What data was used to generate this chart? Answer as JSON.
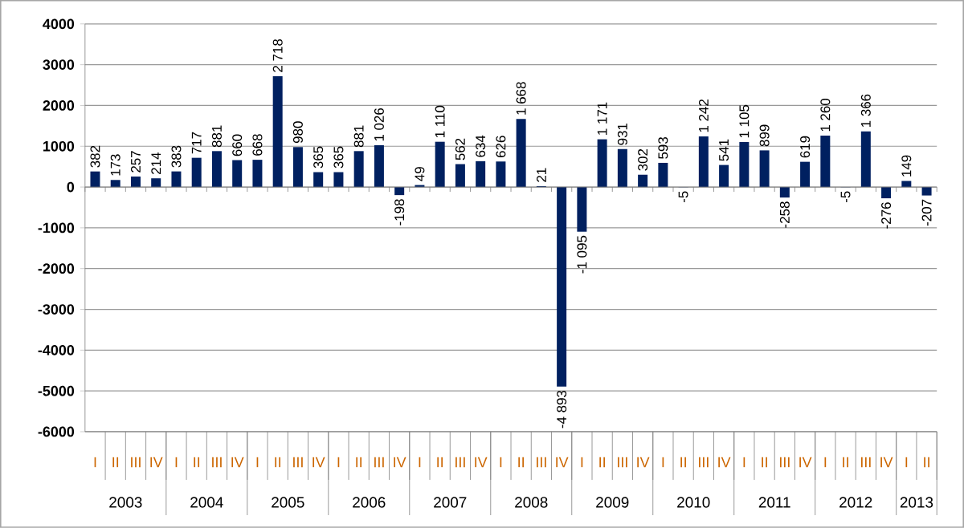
{
  "chart_data": {
    "type": "bar",
    "categories": [
      "I",
      "II",
      "III",
      "IV",
      "I",
      "II",
      "III",
      "IV",
      "I",
      "II",
      "III",
      "IV",
      "I",
      "II",
      "III",
      "IV",
      "I",
      "II",
      "III",
      "IV",
      "I",
      "II",
      "III",
      "IV",
      "I",
      "II",
      "III",
      "IV",
      "I",
      "II",
      "III",
      "IV",
      "I",
      "II",
      "III",
      "IV",
      "I",
      "II",
      "III",
      "IV",
      "I",
      "II"
    ],
    "values": [
      382,
      173,
      257,
      214,
      383,
      717,
      881,
      660,
      668,
      2718,
      980,
      365,
      365,
      881,
      1026,
      -198,
      49,
      1110,
      562,
      634,
      626,
      1668,
      21,
      -4893,
      -1095,
      1171,
      931,
      302,
      593,
      -5,
      1242,
      541,
      1105,
      899,
      -258,
      619,
      1260,
      -5,
      1366,
      -276,
      149,
      -207
    ],
    "value_labels": [
      "382",
      "173",
      "257",
      "214",
      "383",
      "717",
      "881",
      "660",
      "668",
      "2 718",
      "980",
      "365",
      "365",
      "881",
      "1 026",
      "-198",
      "49",
      "1 110",
      "562",
      "634",
      "626",
      "1 668",
      "21",
      "-4 893",
      "-1 095",
      "1 171",
      "931",
      "302",
      "593",
      "-5",
      "1 242",
      "541",
      "1 105",
      "899",
      "-258",
      "619",
      "1 260",
      "-5",
      "1 366",
      "-276",
      "149",
      "-207"
    ],
    "annotations": [
      "2003",
      "2004",
      "2005",
      "2006",
      "2007",
      "2008",
      "2009",
      "2010",
      "2011",
      "2012",
      "2013"
    ],
    "color": "#002060",
    "ylim": [
      -6000,
      4000
    ],
    "yticks": [
      -6000,
      -5000,
      -4000,
      -3000,
      -2000,
      -1000,
      0,
      1000,
      2000,
      3000,
      4000
    ],
    "grid": "y"
  }
}
